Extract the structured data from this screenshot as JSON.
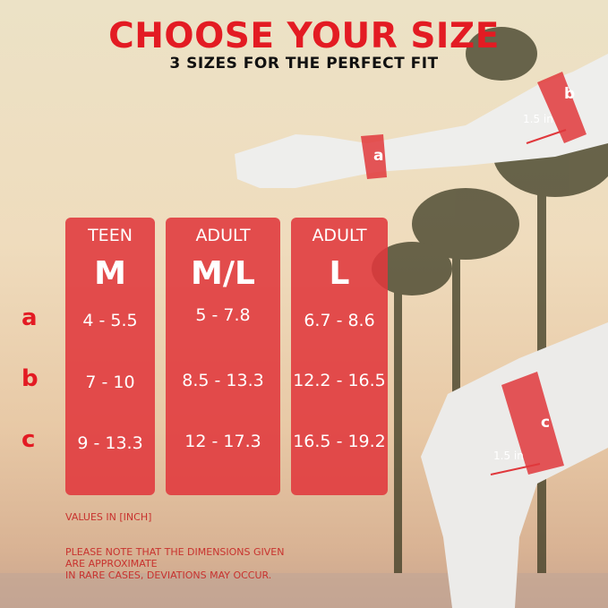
{
  "header": {
    "title": "CHOOSE YOUR SIZE",
    "subtitle": "3 SIZES FOR THE PERFECT FIT"
  },
  "rows": [
    "a",
    "b",
    "c"
  ],
  "columns": [
    {
      "group": "TEEN",
      "size": "M",
      "values": [
        "4 - 5.5",
        "7 - 10",
        "9 - 13.3"
      ]
    },
    {
      "group": "ADULT",
      "size": "M/L",
      "values": [
        "5 - 7.8",
        "8.5 - 13.3",
        "12 - 17.3"
      ]
    },
    {
      "group": "ADULT",
      "size": "L",
      "values": [
        "6.7 - 8.6",
        "12.2 - 16.5",
        "16.5 - 19.2"
      ]
    }
  ],
  "units_note": "VALUES IN [INCH]",
  "disclaimer": [
    "PLEASE NOTE THAT THE DIMENSIONS GIVEN",
    "ARE APPROXIMATE",
    "IN RARE CASES, DEVIATIONS MAY OCCUR."
  ],
  "figure": {
    "band_a": "a",
    "band_b": "b",
    "band_c": "c",
    "width_arm": "1.5 in",
    "width_leg": "1.5 in"
  },
  "colors": {
    "accent": "#e31b23",
    "panel": "#e0383c"
  }
}
